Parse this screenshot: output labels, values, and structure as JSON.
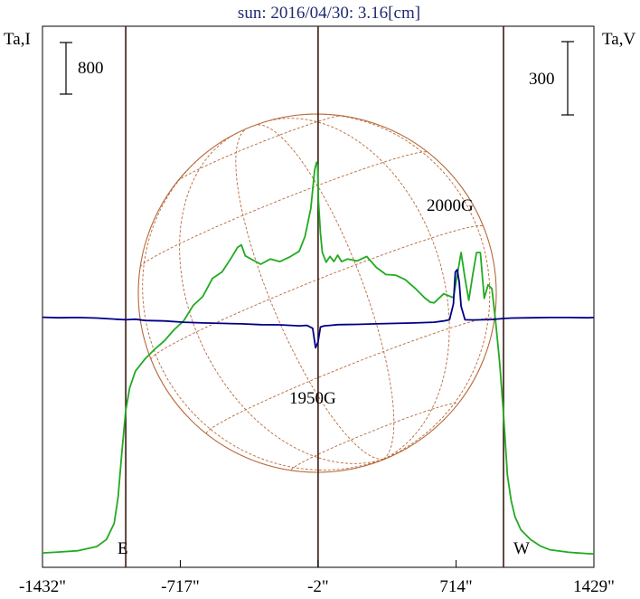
{
  "title": "sun: 2016/04/30: 3.16[cm]",
  "left_axis_label": "Ta,I",
  "right_axis_label": "Ta,V",
  "left_scale_value": "800",
  "right_scale_value": "300",
  "east_label": "E",
  "west_label": "W",
  "annotations": [
    "2000G",
    "1950G"
  ],
  "colors": {
    "stokes_i": "#22aa22",
    "stokes_v": "#000088",
    "disk": "#b8683a",
    "markers": "#3a1a10",
    "title": "#1f2a70"
  },
  "chart_data": {
    "type": "line",
    "title": "sun: 2016/04/30: 3.16[cm]",
    "xlabel": "",
    "ylabel": "Ta,I",
    "y2label": "Ta,V",
    "x_ticks": [
      "-1432\"",
      "-717\"",
      "-2\"",
      "714\"",
      "1429\""
    ],
    "x_tick_values": [
      -1432,
      -717,
      -2,
      714,
      1429
    ],
    "xlim": [
      -1432,
      1429
    ],
    "vertical_markers": [
      -1000,
      -2,
      960
    ],
    "scale_bars": {
      "I": 800,
      "V": 300
    },
    "series": [
      {
        "name": "Ta,I",
        "x": [
          -1432,
          -1350,
          -1250,
          -1150,
          -1100,
          -1060,
          -1040,
          -1020,
          -1000,
          -980,
          -950,
          -900,
          -850,
          -800,
          -750,
          -700,
          -650,
          -600,
          -550,
          -500,
          -450,
          -420,
          -400,
          -380,
          -350,
          -300,
          -250,
          -200,
          -150,
          -100,
          -70,
          -40,
          -20,
          -10,
          -5,
          0,
          10,
          20,
          40,
          60,
          80,
          100,
          120,
          150,
          200,
          250,
          300,
          350,
          400,
          450,
          500,
          550,
          580,
          600,
          650,
          700,
          720,
          740,
          760,
          780,
          800,
          820,
          840,
          860,
          880,
          900,
          920,
          940,
          960,
          980,
          1000,
          1020,
          1050,
          1100,
          1150,
          1200,
          1300,
          1400,
          1429
        ],
        "y": [
          40,
          55,
          75,
          140,
          250,
          500,
          900,
          1600,
          2250,
          2600,
          2860,
          3050,
          3200,
          3330,
          3500,
          3640,
          3880,
          4020,
          4300,
          4400,
          4630,
          4780,
          4820,
          4650,
          4600,
          4520,
          4600,
          4560,
          4630,
          4720,
          4950,
          5380,
          5980,
          6100,
          6050,
          5500,
          5000,
          4700,
          4550,
          4640,
          4560,
          4660,
          4560,
          4600,
          4570,
          4640,
          4470,
          4360,
          4350,
          4280,
          4150,
          4000,
          3930,
          3920,
          4060,
          4000,
          4350,
          4700,
          4300,
          3960,
          4350,
          4700,
          4700,
          3990,
          4200,
          4140,
          3600,
          3000,
          2200,
          1250,
          850,
          600,
          400,
          250,
          150,
          90,
          50,
          30,
          25
        ]
      },
      {
        "name": "Ta,V",
        "x": [
          -1432,
          -1350,
          -1250,
          -1150,
          -1050,
          -1000,
          -950,
          -900,
          -800,
          -700,
          -600,
          -500,
          -400,
          -300,
          -200,
          -100,
          -60,
          -30,
          -15,
          -2,
          10,
          30,
          60,
          100,
          200,
          300,
          400,
          500,
          600,
          650,
          680,
          700,
          710,
          720,
          730,
          740,
          760,
          800,
          850,
          900,
          960,
          1000,
          1100,
          1200,
          1300,
          1400,
          1429
        ],
        "y": [
          5,
          3,
          4,
          2,
          -3,
          -5,
          -3,
          -8,
          -10,
          -15,
          -18,
          -20,
          -22,
          -25,
          -26,
          -30,
          -28,
          -40,
          -120,
          -95,
          -35,
          -30,
          -28,
          -25,
          -24,
          -22,
          -20,
          -18,
          -15,
          -10,
          -5,
          60,
          190,
          200,
          150,
          50,
          -5,
          -6,
          -5,
          -4,
          0,
          2,
          3,
          4,
          4,
          3,
          4
        ]
      }
    ]
  }
}
